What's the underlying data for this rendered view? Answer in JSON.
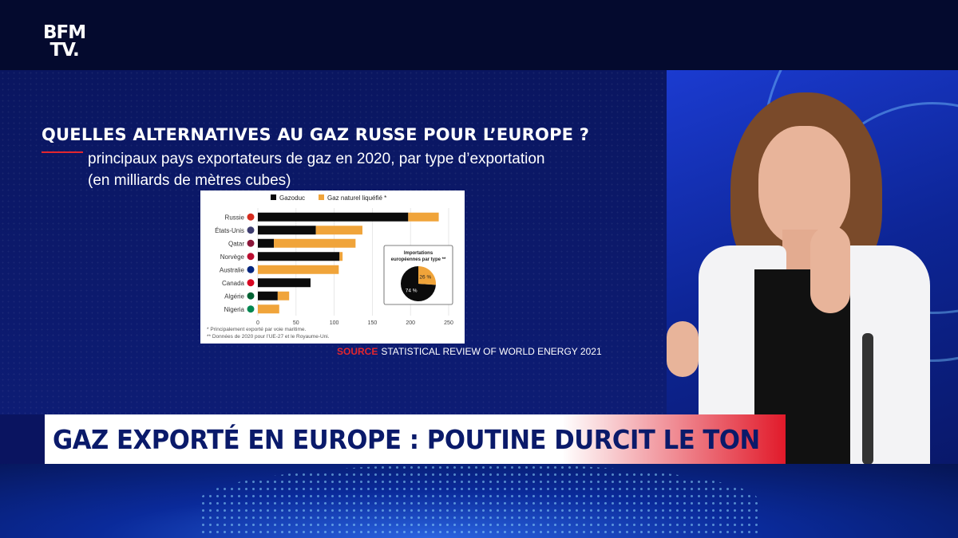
{
  "channel": {
    "logo_line1": "BFM",
    "logo_line2": "TV."
  },
  "colors": {
    "gazoduc": "#0b0b0b",
    "gnl": "#f0a43a",
    "accent_red": "#e3262e",
    "headline_text": "#0a1a6a"
  },
  "graphic": {
    "title": "QUELLES ALTERNATIVES AU GAZ RUSSE POUR L’EUROPE ?",
    "subtitle_line1": "principaux pays exportateurs de gaz en 2020, par type d’exportation",
    "subtitle_line2": "(en milliards de mètres cubes)",
    "source_label": "SOURCE",
    "source_text": "STATISTICAL REVIEW OF WORLD ENERGY 2021"
  },
  "chart_data": {
    "type": "bar",
    "orientation": "horizontal",
    "stacked": true,
    "categories": [
      "Russie",
      "États-Unis",
      "Qatar",
      "Norvège",
      "Australie",
      "Canada",
      "Algérie",
      "Nigeria"
    ],
    "series": [
      {
        "name": "Gazoduc",
        "values": [
          197,
          76,
          21,
          107,
          0,
          69,
          26,
          0
        ]
      },
      {
        "name": "Gaz naturel liquéfié *",
        "values": [
          40,
          61,
          107,
          4,
          106,
          0,
          15,
          28
        ]
      }
    ],
    "xlim": [
      0,
      250
    ],
    "xticks": [
      "0",
      "50",
      "100",
      "150",
      "200",
      "250"
    ],
    "legend_position": "top",
    "inset": {
      "type": "pie",
      "title": "Importations européennes par type **",
      "slices": [
        {
          "label": "74 %",
          "value": 74
        },
        {
          "label": "26 %",
          "value": 26
        }
      ]
    },
    "footnotes": [
      "*   Principalement exporté par voie maritime.",
      "** Données de 2020 pour l’UE-27 et le Royaume-Uni."
    ]
  },
  "lower_third": {
    "headline": "GAZ EXPORTÉ EN EUROPE : POUTINE DURCIT LE TON"
  }
}
